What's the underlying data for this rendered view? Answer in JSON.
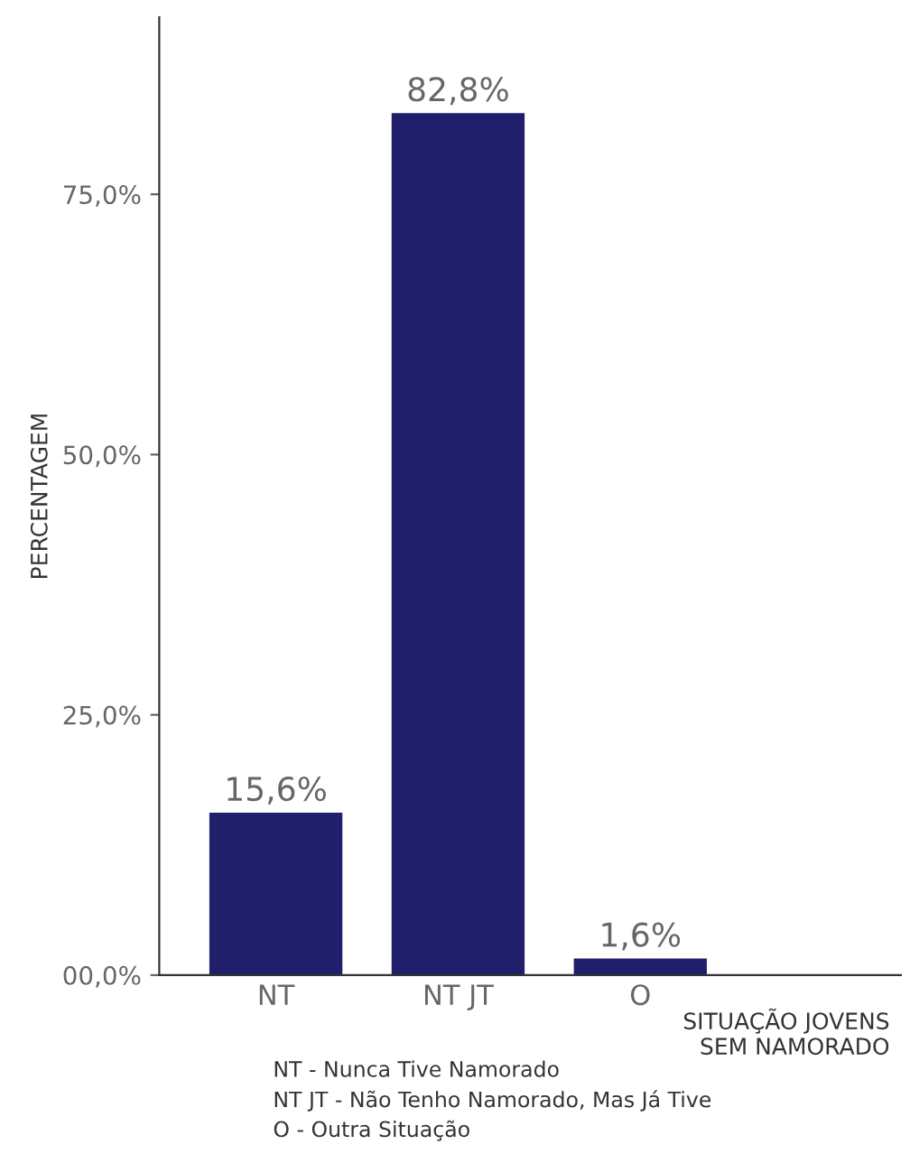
{
  "chart_data": {
    "type": "bar",
    "ylabel": "PERCENTAGEM",
    "xlabel": "SITUAÇÃO JOVENS\nSEM NAMORADO",
    "categories": [
      "NT",
      "NT JT",
      "O"
    ],
    "values": [
      15.6,
      82.8,
      1.6
    ],
    "value_labels": [
      "15,6%",
      "82,8%",
      "1,6%"
    ],
    "color": "#1f1f6b",
    "ylim": [
      0,
      92
    ],
    "yticks": [
      {
        "value": 0,
        "label": "00,0%"
      },
      {
        "value": 25,
        "label": "25,0%"
      },
      {
        "value": 50,
        "label": "50,0%"
      },
      {
        "value": 75,
        "label": "75,0%"
      }
    ],
    "grid": false,
    "legend": false,
    "annotations": [
      "NT - Nunca Tive Namorado",
      "NT JT - Não Tenho Namorado, Mas Já Tive",
      "O - Outra Situação"
    ]
  }
}
